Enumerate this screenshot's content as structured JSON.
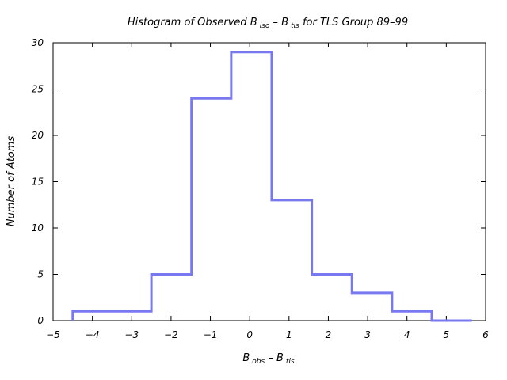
{
  "chart_data": {
    "type": "histogram",
    "title": {
      "prefix": "Histogram of Observed B",
      "sub1": "iso",
      "middle": " – B",
      "sub2": "tls",
      "suffix": "  for TLS Group 89–99"
    },
    "xlabel": {
      "main1": "B",
      "sub1": "obs",
      "main2": " – B",
      "sub2": "tls"
    },
    "ylabel": "Number of Atoms",
    "xlim": [
      -5,
      6
    ],
    "ylim": [
      0,
      30
    ],
    "x_ticks": [
      -5,
      -4,
      -3,
      -2,
      -1,
      0,
      1,
      2,
      3,
      4,
      5,
      6
    ],
    "x_tick_labels": [
      "−5",
      "−4",
      "−3",
      "−2",
      "−1",
      "0",
      "1",
      "2",
      "3",
      "4",
      "5",
      "6"
    ],
    "y_ticks": [
      0,
      5,
      10,
      15,
      20,
      25,
      30
    ],
    "y_tick_labels": [
      "0",
      "5",
      "10",
      "15",
      "20",
      "25",
      "30"
    ],
    "bin_edges": [
      -4.5,
      -2.5,
      -1.48,
      -0.47,
      0.56,
      1.58,
      2.6,
      3.62,
      4.63,
      5.65
    ],
    "counts": [
      1,
      5,
      24,
      29,
      13,
      5,
      3,
      1,
      0
    ],
    "line_color": "#7878f0",
    "grid": false
  }
}
